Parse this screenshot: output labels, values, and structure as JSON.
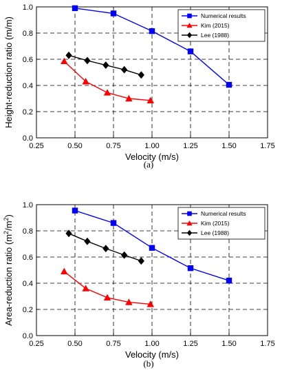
{
  "chart_data": [
    {
      "type": "line",
      "caption": "(a)",
      "xlabel": "Velocity (m/s)",
      "ylabel": "Height-reduction ratio (m/m)",
      "ylabel_sup": "",
      "xlim": [
        0.25,
        1.75
      ],
      "ylim": [
        0.0,
        1.0
      ],
      "xticks": [
        "0.25",
        "0.50",
        "0.75",
        "1.00",
        "1.25",
        "1.50",
        "1.75"
      ],
      "yticks": [
        "0.0",
        "0.2",
        "0.4",
        "0.6",
        "0.8",
        "1.0"
      ],
      "grid": true,
      "legend_position": "top-right",
      "series": [
        {
          "name": "Numerical results",
          "color": "#0000ff",
          "marker": "square",
          "x": [
            0.5,
            0.75,
            1.0,
            1.25,
            1.5
          ],
          "y": [
            0.99,
            0.95,
            0.815,
            0.66,
            0.405
          ]
        },
        {
          "name": "Kim (2015)",
          "color": "#ff0000",
          "marker": "triangle",
          "x": [
            0.43,
            0.57,
            0.71,
            0.85,
            0.99
          ],
          "y": [
            0.585,
            0.43,
            0.345,
            0.3,
            0.285
          ]
        },
        {
          "name": "Lee (1988)",
          "color": "#000000",
          "marker": "diamond",
          "x": [
            0.46,
            0.58,
            0.7,
            0.82,
            0.93
          ],
          "y": [
            0.63,
            0.59,
            0.555,
            0.52,
            0.48
          ]
        }
      ]
    },
    {
      "type": "line",
      "caption": "(b)",
      "xlabel": "Velocity (m/s)",
      "ylabel": "Area-reduction ratio (m",
      "ylabel_sup": "2",
      "ylabel_mid": "/m",
      "ylabel_sup2": "2",
      "ylabel_end": ")",
      "xlim": [
        0.25,
        1.75
      ],
      "ylim": [
        0.0,
        1.0
      ],
      "xticks": [
        "0.25",
        "0.50",
        "0.75",
        "1.00",
        "1.25",
        "1.50",
        "1.75"
      ],
      "yticks": [
        "0.0",
        "0.2",
        "0.4",
        "0.6",
        "0.8",
        "1.0"
      ],
      "grid": true,
      "legend_position": "top-right",
      "series": [
        {
          "name": "Numerical results",
          "color": "#0000ff",
          "marker": "square",
          "x": [
            0.5,
            0.75,
            1.0,
            1.25,
            1.5
          ],
          "y": [
            0.955,
            0.86,
            0.67,
            0.515,
            0.42
          ]
        },
        {
          "name": "Kim (2015)",
          "color": "#ff0000",
          "marker": "triangle",
          "x": [
            0.43,
            0.57,
            0.71,
            0.85,
            0.99
          ],
          "y": [
            0.49,
            0.36,
            0.29,
            0.255,
            0.24
          ]
        },
        {
          "name": "Lee (1988)",
          "color": "#000000",
          "marker": "diamond",
          "x": [
            0.46,
            0.58,
            0.7,
            0.82,
            0.93
          ],
          "y": [
            0.78,
            0.72,
            0.665,
            0.615,
            0.57
          ]
        }
      ]
    }
  ]
}
